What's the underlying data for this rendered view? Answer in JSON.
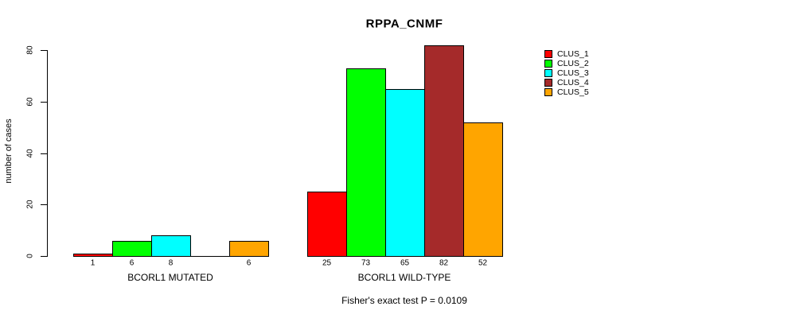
{
  "chart_data": {
    "type": "bar",
    "title": "RPPA_CNMF",
    "ylabel": "number of cases",
    "xlabel": "",
    "ylim": [
      0,
      80
    ],
    "yticks": [
      0,
      20,
      40,
      60,
      80
    ],
    "grid": false,
    "legend_position": "right",
    "categories": [
      "CLUS_1",
      "CLUS_2",
      "CLUS_3",
      "CLUS_4",
      "CLUS_5"
    ],
    "colors": [
      "#FF0000",
      "#00FF00",
      "#00FFFF",
      "#A52A2A",
      "#FFA500"
    ],
    "series_note": "grouped bars; one bar per cluster per group; zero-value bars drawn as flat line with no label",
    "groups": [
      {
        "label": "BCORL1 MUTATED",
        "values": [
          1,
          6,
          8,
          0,
          6
        ]
      },
      {
        "label": "BCORL1 WILD-TYPE",
        "values": [
          25,
          73,
          65,
          82,
          52
        ]
      }
    ],
    "footnote": "Fisher's exact test P = 0.0109"
  }
}
